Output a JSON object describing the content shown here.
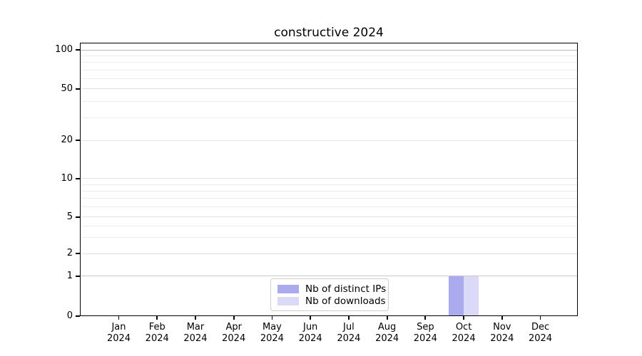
{
  "chart_data": {
    "type": "bar",
    "title": "constructive 2024",
    "categories": [
      "Jan 2024",
      "Feb 2024",
      "Mar 2024",
      "Apr 2024",
      "May 2024",
      "Jun 2024",
      "Jul 2024",
      "Aug 2024",
      "Sep 2024",
      "Oct 2024",
      "Nov 2024",
      "Dec 2024"
    ],
    "series": [
      {
        "name": "Nb of distinct IPs",
        "color": "#abaaee",
        "values": [
          0,
          0,
          0,
          0,
          0,
          0,
          0,
          0,
          0,
          1,
          0,
          0
        ]
      },
      {
        "name": "Nb of downloads",
        "color": "#dadaf8",
        "values": [
          0,
          0,
          0,
          0,
          0,
          0,
          0,
          0,
          0,
          1,
          0,
          0
        ]
      }
    ],
    "yscale": "symlog",
    "yticks": [
      0,
      1,
      2,
      5,
      10,
      20,
      50,
      100
    ],
    "minor_yticks": [
      3,
      4,
      6,
      7,
      8,
      9,
      30,
      40,
      60,
      70,
      80,
      90
    ],
    "ylim": [
      0,
      115
    ],
    "grid": true,
    "legend": {
      "position": "lower center",
      "entries": [
        "Nb of distinct IPs",
        "Nb of downloads"
      ]
    },
    "colors": {
      "axis": "#000000",
      "grid_minor": "#ededed",
      "grid_major": "#e2e2e2",
      "grid_line_1": "#c9c9c9",
      "grid_line_100": "#b9b9b9"
    }
  }
}
